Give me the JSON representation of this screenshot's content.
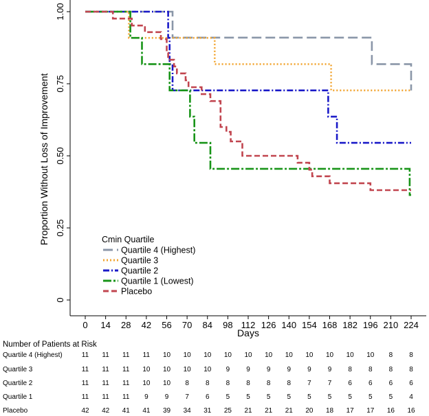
{
  "chart_data": {
    "type": "line",
    "title": "",
    "xlabel": "Days",
    "ylabel": "Proportion Without Loss of Improvement",
    "xlim": [
      0,
      224
    ],
    "ylim": [
      0,
      1
    ],
    "x_ticks": [
      "0",
      "14",
      "28",
      "42",
      "56",
      "70",
      "84",
      "98",
      "112",
      "126",
      "140",
      "154",
      "168",
      "182",
      "196",
      "210",
      "224"
    ],
    "y_ticks": [
      {
        "value": 0,
        "label": "0"
      },
      {
        "value": 0.25,
        "label": "0.25"
      },
      {
        "value": 0.5,
        "label": "0.50"
      },
      {
        "value": 0.75,
        "label": "0.75"
      },
      {
        "value": 1,
        "label": "1.00"
      }
    ],
    "grid": false,
    "legend": {
      "title": "Cmin Quartile",
      "placement": "bottom-left"
    },
    "series": [
      {
        "name": "Quartile 4 (Highest)",
        "color": "#8a96a8",
        "dash": "long-dash",
        "x": [
          0,
          28,
          38,
          60,
          196,
          197,
          224
        ],
        "y": [
          1.0,
          1.0,
          1.0,
          0.91,
          0.91,
          0.818,
          0.727
        ]
      },
      {
        "name": "Quartile 3",
        "color": "#f2a531",
        "dash": "dot",
        "x": [
          0,
          28,
          30,
          59,
          60,
          89,
          168,
          169,
          224
        ],
        "y": [
          1.0,
          1.0,
          0.909,
          0.909,
          0.909,
          0.818,
          0.818,
          0.727,
          0.727
        ]
      },
      {
        "name": "Quartile 2",
        "color": "#1a1ac8",
        "dash": "dash-dot",
        "x": [
          0,
          28,
          57,
          58,
          60,
          149,
          167,
          173,
          224
        ],
        "y": [
          1.0,
          1.0,
          0.909,
          0.818,
          0.727,
          0.727,
          0.636,
          0.545,
          0.545
        ]
      },
      {
        "name": "Quartile 1 (Lowest)",
        "color": "#189418",
        "dash": "long-dash-dot",
        "x": [
          0,
          28,
          31,
          39,
          58,
          72,
          75,
          86,
          221,
          223,
          224
        ],
        "y": [
          1.0,
          1.0,
          0.909,
          0.818,
          0.727,
          0.636,
          0.545,
          0.455,
          0.455,
          0.364,
          0.364
        ]
      },
      {
        "name": "Placebo",
        "color": "#c1454f",
        "dash": "dash",
        "x": [
          0,
          14,
          19,
          32,
          41,
          52,
          56,
          57,
          61,
          63,
          69,
          71,
          80,
          86,
          93,
          97,
          100,
          108,
          126,
          146,
          154,
          156,
          168,
          180,
          196,
          207,
          224
        ],
        "y": [
          1.0,
          1.0,
          0.976,
          0.952,
          0.929,
          0.905,
          0.857,
          0.833,
          0.81,
          0.786,
          0.762,
          0.738,
          0.714,
          0.69,
          0.6,
          0.583,
          0.55,
          0.5,
          0.5,
          0.476,
          0.452,
          0.429,
          0.405,
          0.405,
          0.381,
          0.381,
          0.381
        ]
      }
    ],
    "risk_table": {
      "title": "Number of Patients at Risk",
      "rows": [
        {
          "label": "Quartile 4 (Highest)",
          "values": [
            "11",
            "11",
            "11",
            "11",
            "10",
            "10",
            "10",
            "10",
            "10",
            "10",
            "10",
            "10",
            "10",
            "10",
            "10",
            "8",
            "8"
          ]
        },
        {
          "label": "Quartile 3",
          "values": [
            "11",
            "11",
            "11",
            "10",
            "10",
            "10",
            "10",
            "9",
            "9",
            "9",
            "9",
            "9",
            "9",
            "8",
            "8",
            "8",
            "8"
          ]
        },
        {
          "label": "Quartile 2",
          "values": [
            "11",
            "11",
            "11",
            "10",
            "10",
            "8",
            "8",
            "8",
            "8",
            "8",
            "8",
            "7",
            "7",
            "6",
            "6",
            "6",
            "6"
          ]
        },
        {
          "label": "Quartile 1",
          "values": [
            "11",
            "11",
            "11",
            "9",
            "9",
            "7",
            "6",
            "5",
            "5",
            "5",
            "5",
            "5",
            "5",
            "5",
            "5",
            "5",
            "4"
          ]
        },
        {
          "label": "Placebo",
          "values": [
            "42",
            "42",
            "41",
            "41",
            "39",
            "34",
            "31",
            "25",
            "21",
            "21",
            "21",
            "20",
            "18",
            "17",
            "17",
            "16",
            "16"
          ]
        }
      ]
    }
  }
}
